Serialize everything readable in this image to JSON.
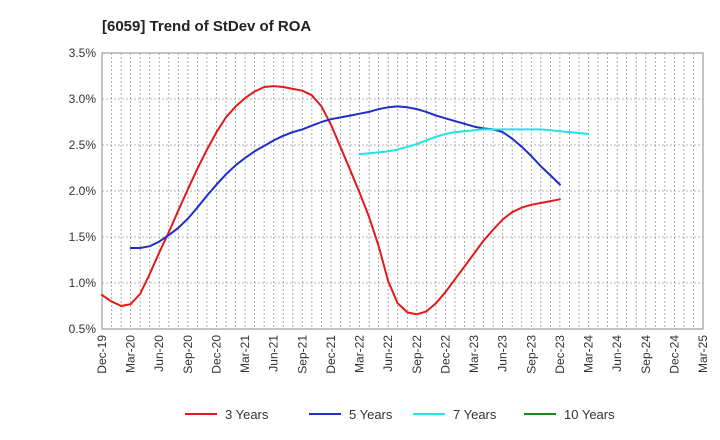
{
  "chart_data": {
    "type": "line",
    "title": "[6059]  Trend of StDev of ROA",
    "xlabel": "",
    "ylabel": "",
    "x_categories": [
      "Dec-19",
      "Mar-20",
      "Jun-20",
      "Sep-20",
      "Dec-20",
      "Mar-21",
      "Jun-21",
      "Sep-21",
      "Dec-21",
      "Mar-22",
      "Jun-22",
      "Sep-22",
      "Dec-22",
      "Mar-23",
      "Jun-23",
      "Sep-23",
      "Dec-23",
      "Mar-24",
      "Jun-24",
      "Sep-24",
      "Dec-24",
      "Mar-25"
    ],
    "ylim": [
      0.5,
      3.5
    ],
    "y_ticks": [
      0.5,
      1.0,
      1.5,
      2.0,
      2.5,
      3.0,
      3.5
    ],
    "y_tick_labels": [
      "0.5%",
      "1.0%",
      "1.5%",
      "2.0%",
      "2.5%",
      "3.0%",
      "3.5%"
    ],
    "grid": true,
    "legend_position": "bottom",
    "series": [
      {
        "name": "3 Years",
        "color": "#e31a1c",
        "points": [
          [
            0,
            0.87
          ],
          [
            0.33,
            0.8
          ],
          [
            0.67,
            0.75
          ],
          [
            1,
            0.77
          ],
          [
            1.33,
            0.88
          ],
          [
            1.67,
            1.1
          ],
          [
            2,
            1.33
          ],
          [
            2.33,
            1.55
          ],
          [
            2.67,
            1.79
          ],
          [
            3,
            2.02
          ],
          [
            3.33,
            2.24
          ],
          [
            3.67,
            2.45
          ],
          [
            4,
            2.64
          ],
          [
            4.33,
            2.8
          ],
          [
            4.67,
            2.92
          ],
          [
            5,
            3.01
          ],
          [
            5.33,
            3.08
          ],
          [
            5.67,
            3.13
          ],
          [
            6,
            3.14
          ],
          [
            6.33,
            3.13
          ],
          [
            6.67,
            3.11
          ],
          [
            7,
            3.09
          ],
          [
            7.33,
            3.04
          ],
          [
            7.67,
            2.92
          ],
          [
            8,
            2.72
          ],
          [
            8.33,
            2.48
          ],
          [
            8.67,
            2.23
          ],
          [
            9,
            1.98
          ],
          [
            9.33,
            1.72
          ],
          [
            9.67,
            1.4
          ],
          [
            10,
            1.02
          ],
          [
            10.33,
            0.78
          ],
          [
            10.67,
            0.68
          ],
          [
            11,
            0.66
          ],
          [
            11.33,
            0.69
          ],
          [
            11.67,
            0.78
          ],
          [
            12,
            0.9
          ],
          [
            12.33,
            1.04
          ],
          [
            12.67,
            1.18
          ],
          [
            13,
            1.32
          ],
          [
            13.33,
            1.46
          ],
          [
            13.67,
            1.58
          ],
          [
            14,
            1.69
          ],
          [
            14.33,
            1.77
          ],
          [
            14.67,
            1.82
          ],
          [
            15,
            1.85
          ],
          [
            15.33,
            1.87
          ],
          [
            15.67,
            1.89
          ],
          [
            16,
            1.91
          ]
        ]
      },
      {
        "name": "5 Years",
        "color": "#1f2ec8",
        "points": [
          [
            1,
            1.38
          ],
          [
            1.33,
            1.38
          ],
          [
            1.67,
            1.4
          ],
          [
            2,
            1.45
          ],
          [
            2.33,
            1.52
          ],
          [
            2.67,
            1.6
          ],
          [
            3,
            1.7
          ],
          [
            3.33,
            1.82
          ],
          [
            3.67,
            1.95
          ],
          [
            4,
            2.07
          ],
          [
            4.33,
            2.18
          ],
          [
            4.67,
            2.28
          ],
          [
            5,
            2.36
          ],
          [
            5.33,
            2.43
          ],
          [
            5.67,
            2.49
          ],
          [
            6,
            2.55
          ],
          [
            6.33,
            2.6
          ],
          [
            6.67,
            2.64
          ],
          [
            7,
            2.67
          ],
          [
            7.33,
            2.71
          ],
          [
            7.67,
            2.75
          ],
          [
            8,
            2.78
          ],
          [
            8.33,
            2.8
          ],
          [
            8.67,
            2.82
          ],
          [
            9,
            2.84
          ],
          [
            9.33,
            2.86
          ],
          [
            9.67,
            2.89
          ],
          [
            10,
            2.91
          ],
          [
            10.33,
            2.92
          ],
          [
            10.67,
            2.91
          ],
          [
            11,
            2.89
          ],
          [
            11.33,
            2.86
          ],
          [
            11.67,
            2.82
          ],
          [
            12,
            2.79
          ],
          [
            12.33,
            2.76
          ],
          [
            12.67,
            2.73
          ],
          [
            13,
            2.7
          ],
          [
            13.33,
            2.68
          ],
          [
            13.67,
            2.67
          ],
          [
            14,
            2.64
          ],
          [
            14.33,
            2.57
          ],
          [
            14.67,
            2.48
          ],
          [
            15,
            2.38
          ],
          [
            15.33,
            2.27
          ],
          [
            15.67,
            2.17
          ],
          [
            16,
            2.07
          ]
        ]
      },
      {
        "name": "7 Years",
        "color": "#1ee6e6",
        "points": [
          [
            9,
            2.4
          ],
          [
            9.33,
            2.41
          ],
          [
            9.67,
            2.42
          ],
          [
            10,
            2.43
          ],
          [
            10.33,
            2.45
          ],
          [
            10.67,
            2.48
          ],
          [
            11,
            2.51
          ],
          [
            11.33,
            2.55
          ],
          [
            11.67,
            2.59
          ],
          [
            12,
            2.62
          ],
          [
            12.33,
            2.64
          ],
          [
            12.67,
            2.65
          ],
          [
            13,
            2.66
          ],
          [
            13.33,
            2.67
          ],
          [
            13.67,
            2.67
          ],
          [
            14,
            2.67
          ],
          [
            14.33,
            2.67
          ],
          [
            14.67,
            2.67
          ],
          [
            15,
            2.67
          ],
          [
            15.33,
            2.67
          ],
          [
            15.67,
            2.66
          ],
          [
            16,
            2.65
          ],
          [
            16.33,
            2.64
          ],
          [
            16.67,
            2.63
          ],
          [
            17,
            2.62
          ]
        ]
      },
      {
        "name": "10 Years",
        "color": "#1a8a1a",
        "points": []
      }
    ]
  }
}
